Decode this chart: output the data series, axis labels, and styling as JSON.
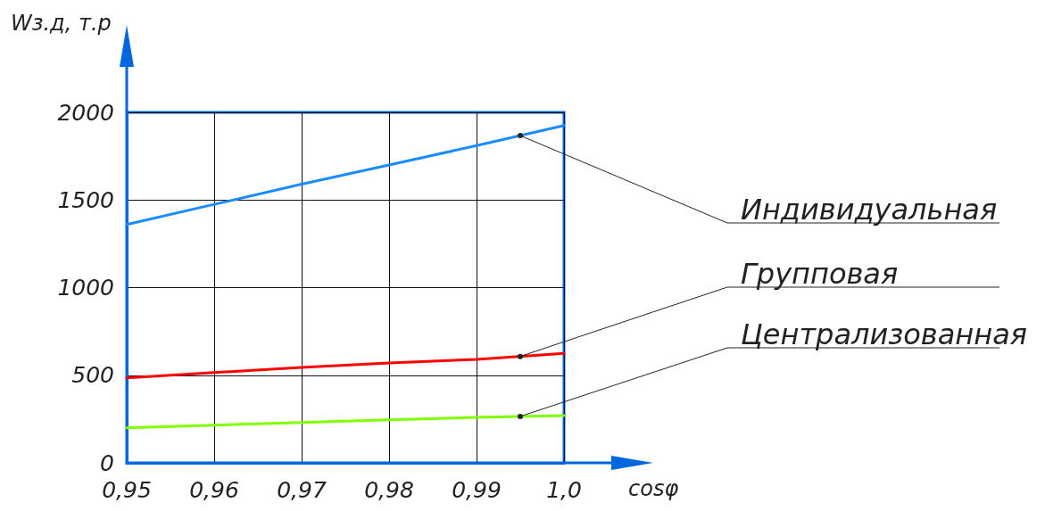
{
  "chart_data": {
    "type": "line",
    "xlabel": "cosφ",
    "ylabel": "Wз.д, т.р",
    "x": [
      0.95,
      0.96,
      0.97,
      0.98,
      0.99,
      1.0
    ],
    "series": [
      {
        "name": "Индивидуальная",
        "color": "#1a8cff",
        "values": [
          1360,
          1475,
          1590,
          1700,
          1810,
          1925
        ]
      },
      {
        "name": "Групповая",
        "color": "#ff0000",
        "values": [
          485,
          515,
          545,
          570,
          590,
          625
        ]
      },
      {
        "name": "Централизованная",
        "color": "#80ff00",
        "values": [
          200,
          215,
          230,
          245,
          260,
          270
        ]
      }
    ],
    "xlim": [
      0.95,
      1.0
    ],
    "xticks": [
      {
        "value": 0.95,
        "label": "0,95"
      },
      {
        "value": 0.96,
        "label": "0,96"
      },
      {
        "value": 0.97,
        "label": "0,97"
      },
      {
        "value": 0.98,
        "label": "0,98"
      },
      {
        "value": 0.99,
        "label": "0,99"
      },
      {
        "value": 1.0,
        "label": "1,0"
      }
    ],
    "ylim": [
      0,
      2000
    ],
    "yticks": [
      0,
      500,
      1000,
      1500,
      2000
    ],
    "grid": true,
    "legend": false,
    "marker": "none",
    "line_style": "solid"
  }
}
